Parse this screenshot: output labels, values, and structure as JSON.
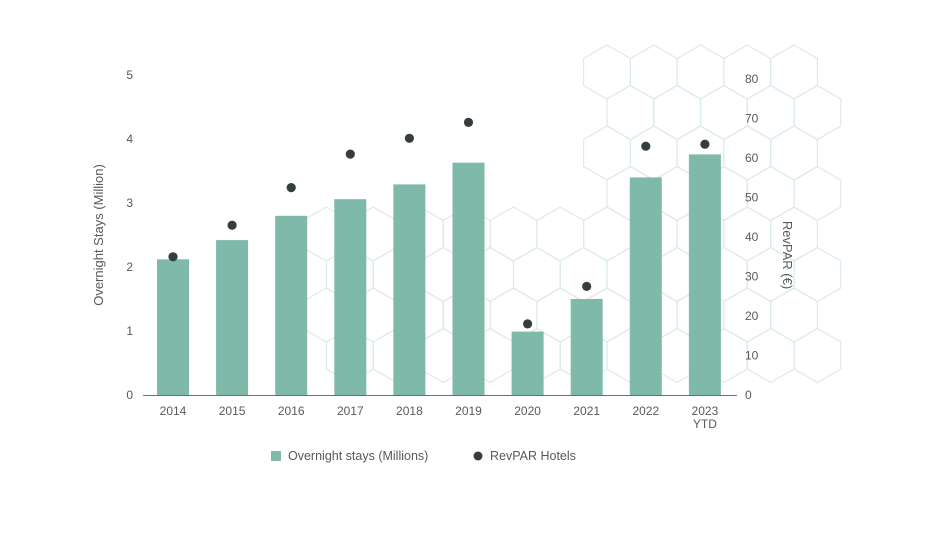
{
  "chart_data": {
    "type": "bar",
    "categories": [
      "2014",
      "2015",
      "2016",
      "2017",
      "2018",
      "2019",
      "2020",
      "2021",
      "2022",
      "2023\nYTD"
    ],
    "series": [
      {
        "name": "Overnight stays (Millions)",
        "type": "bar",
        "axis": "left",
        "values": [
          2.12,
          2.42,
          2.8,
          3.06,
          3.29,
          3.63,
          0.99,
          1.5,
          3.4,
          3.76
        ]
      },
      {
        "name": "RevPAR Hotels",
        "type": "scatter",
        "axis": "right",
        "values": [
          35,
          43,
          52.5,
          61,
          65,
          69,
          18,
          27.5,
          63,
          63.5
        ]
      }
    ],
    "ylabel": "Overnight Stays (Million)",
    "y2label": "RevPAR (€)",
    "ylim": [
      0,
      5
    ],
    "y2lim": [
      0,
      80
    ],
    "yticks": [
      "0",
      "1",
      "2",
      "3",
      "4",
      "5"
    ],
    "y2ticks": [
      "0",
      "10",
      "20",
      "30",
      "40",
      "50",
      "60",
      "70",
      "80"
    ],
    "legend_position": "bottom",
    "grid": false,
    "colors": {
      "bar": "#7fb9aa",
      "dot": "#353d3d",
      "axis": "#6b6f70",
      "text": "#555a5c",
      "hex_pattern": "#dcebe6"
    }
  }
}
